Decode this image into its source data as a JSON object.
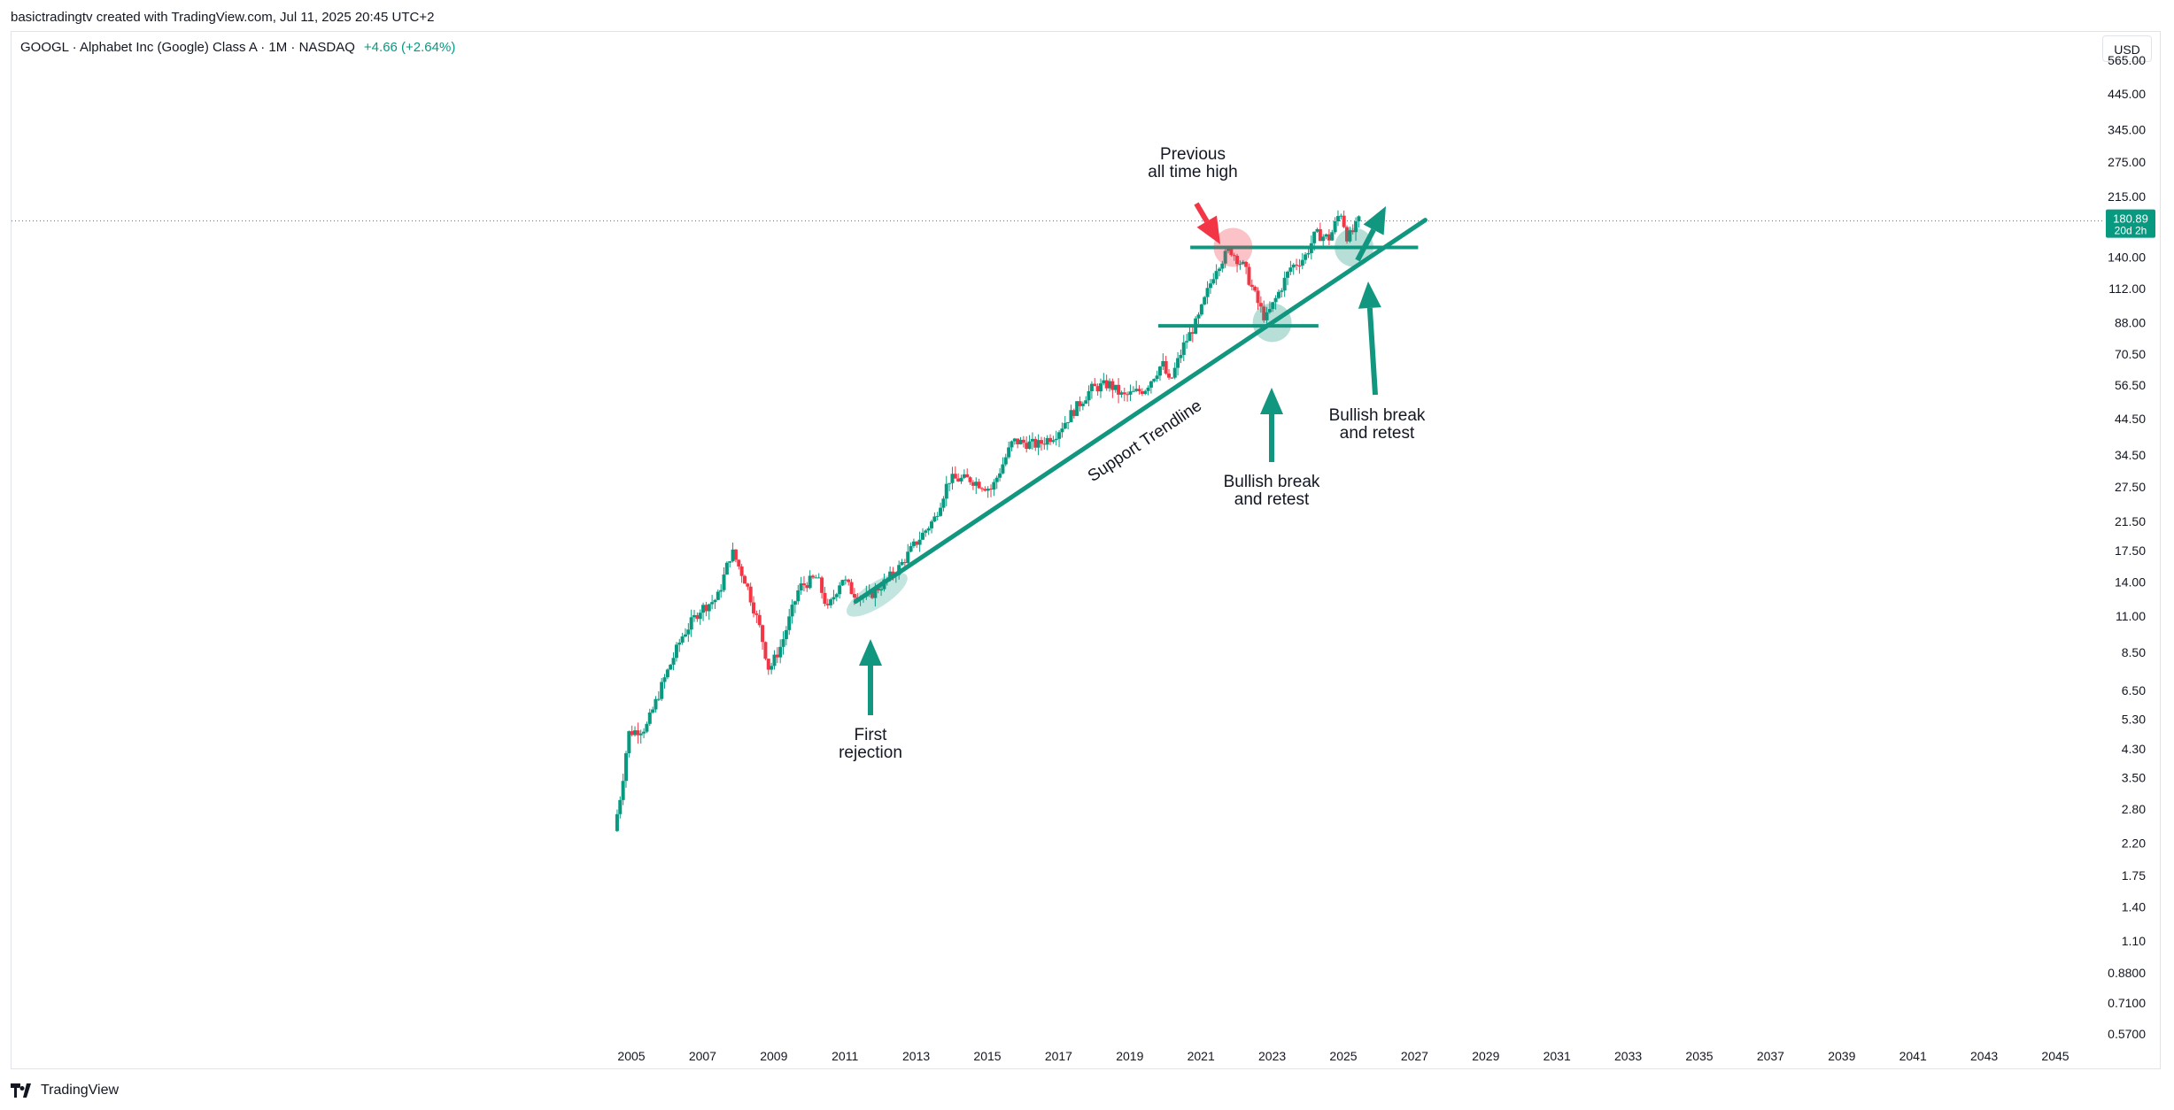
{
  "header": {
    "credit": "basictradingtv created with TradingView.com, Jul 11, 2025 20:45 UTC+2",
    "symbol": "GOOGL · Alphabet Inc (Google) Class A · 1M · NASDAQ",
    "change": "+4.66 (+2.64%)",
    "currency": "USD"
  },
  "footer": {
    "brand": "TradingView",
    "logo_icon": "tradingview-logo-icon"
  },
  "colors": {
    "up": "#089981",
    "down": "#f23645",
    "annotation_green": "#11967f",
    "annotation_red": "#f23645",
    "axis_text": "#131722"
  },
  "chart_data": {
    "type": "candlestick",
    "title": "",
    "symbol": "GOOGL",
    "interval": "1M",
    "exchange": "NASDAQ",
    "y_scale": "log",
    "x_ticks": [
      "2005",
      "2007",
      "2009",
      "2011",
      "2013",
      "2015",
      "2017",
      "2019",
      "2021",
      "2023",
      "2025",
      "2027",
      "2029",
      "2031",
      "2033",
      "2035",
      "2037",
      "2039",
      "2041",
      "2043",
      "2045"
    ],
    "y_ticks": [
      "565.00",
      "445.00",
      "345.00",
      "275.00",
      "215.00",
      "140.00",
      "112.00",
      "88.00",
      "70.50",
      "56.50",
      "44.50",
      "34.50",
      "27.50",
      "21.50",
      "17.50",
      "14.00",
      "11.00",
      "8.50",
      "6.50",
      "5.30",
      "4.30",
      "3.50",
      "2.80",
      "2.20",
      "1.75",
      "1.40",
      "1.10",
      "0.8800",
      "0.7100",
      "0.5700"
    ],
    "ylim": [
      0.55,
      760
    ],
    "xlim": [
      2003.6,
      2047.6
    ],
    "last_price": {
      "value": "180.89",
      "countdown": "20d 2h"
    },
    "price_path": [
      [
        2004.6,
        2.4
      ],
      [
        2004.8,
        3.2
      ],
      [
        2005.0,
        4.8
      ],
      [
        2005.5,
        5.0
      ],
      [
        2006.0,
        7.0
      ],
      [
        2006.5,
        9.5
      ],
      [
        2007.0,
        11.5
      ],
      [
        2007.5,
        12.5
      ],
      [
        2007.9,
        17.5
      ],
      [
        2008.3,
        14.0
      ],
      [
        2008.7,
        10.0
      ],
      [
        2008.95,
        7.5
      ],
      [
        2009.3,
        9.0
      ],
      [
        2009.8,
        13.5
      ],
      [
        2010.3,
        14.5
      ],
      [
        2010.6,
        11.5
      ],
      [
        2011.0,
        14.5
      ],
      [
        2011.3,
        13.0
      ],
      [
        2011.7,
        12.5
      ],
      [
        2012.2,
        14.0
      ],
      [
        2012.6,
        15.5
      ],
      [
        2013.0,
        18.0
      ],
      [
        2013.6,
        22.0
      ],
      [
        2014.0,
        29.0
      ],
      [
        2014.6,
        29.0
      ],
      [
        2015.2,
        27.0
      ],
      [
        2015.8,
        38.0
      ],
      [
        2016.5,
        37.0
      ],
      [
        2017.0,
        40.0
      ],
      [
        2017.5,
        47.0
      ],
      [
        2018.0,
        55.0
      ],
      [
        2018.5,
        57.0
      ],
      [
        2018.9,
        52.0
      ],
      [
        2019.5,
        55.0
      ],
      [
        2020.0,
        66.0
      ],
      [
        2020.2,
        57.0
      ],
      [
        2020.6,
        75.0
      ],
      [
        2021.0,
        90.0
      ],
      [
        2021.5,
        130.0
      ],
      [
        2021.9,
        148.0
      ],
      [
        2022.3,
        130.0
      ],
      [
        2022.7,
        100.0
      ],
      [
        2022.9,
        90.0
      ],
      [
        2023.2,
        105.0
      ],
      [
        2023.6,
        130.0
      ],
      [
        2024.0,
        140.0
      ],
      [
        2024.3,
        165.0
      ],
      [
        2024.7,
        160.0
      ],
      [
        2025.0,
        195.0
      ],
      [
        2025.2,
        160.0
      ],
      [
        2025.4,
        170.0
      ],
      [
        2025.5,
        180.89
      ]
    ],
    "annotations": [
      {
        "kind": "text",
        "text": "Previous\nall time high"
      },
      {
        "kind": "text",
        "text": "First\nrejection"
      },
      {
        "kind": "text",
        "text": "Bullish break\nand retest"
      },
      {
        "kind": "text",
        "text": "Bullish break\nand retest"
      },
      {
        "kind": "trendline-label",
        "text": "Support Trendline"
      },
      {
        "kind": "hline",
        "price": 150
      },
      {
        "kind": "hline",
        "price": 86
      }
    ]
  }
}
